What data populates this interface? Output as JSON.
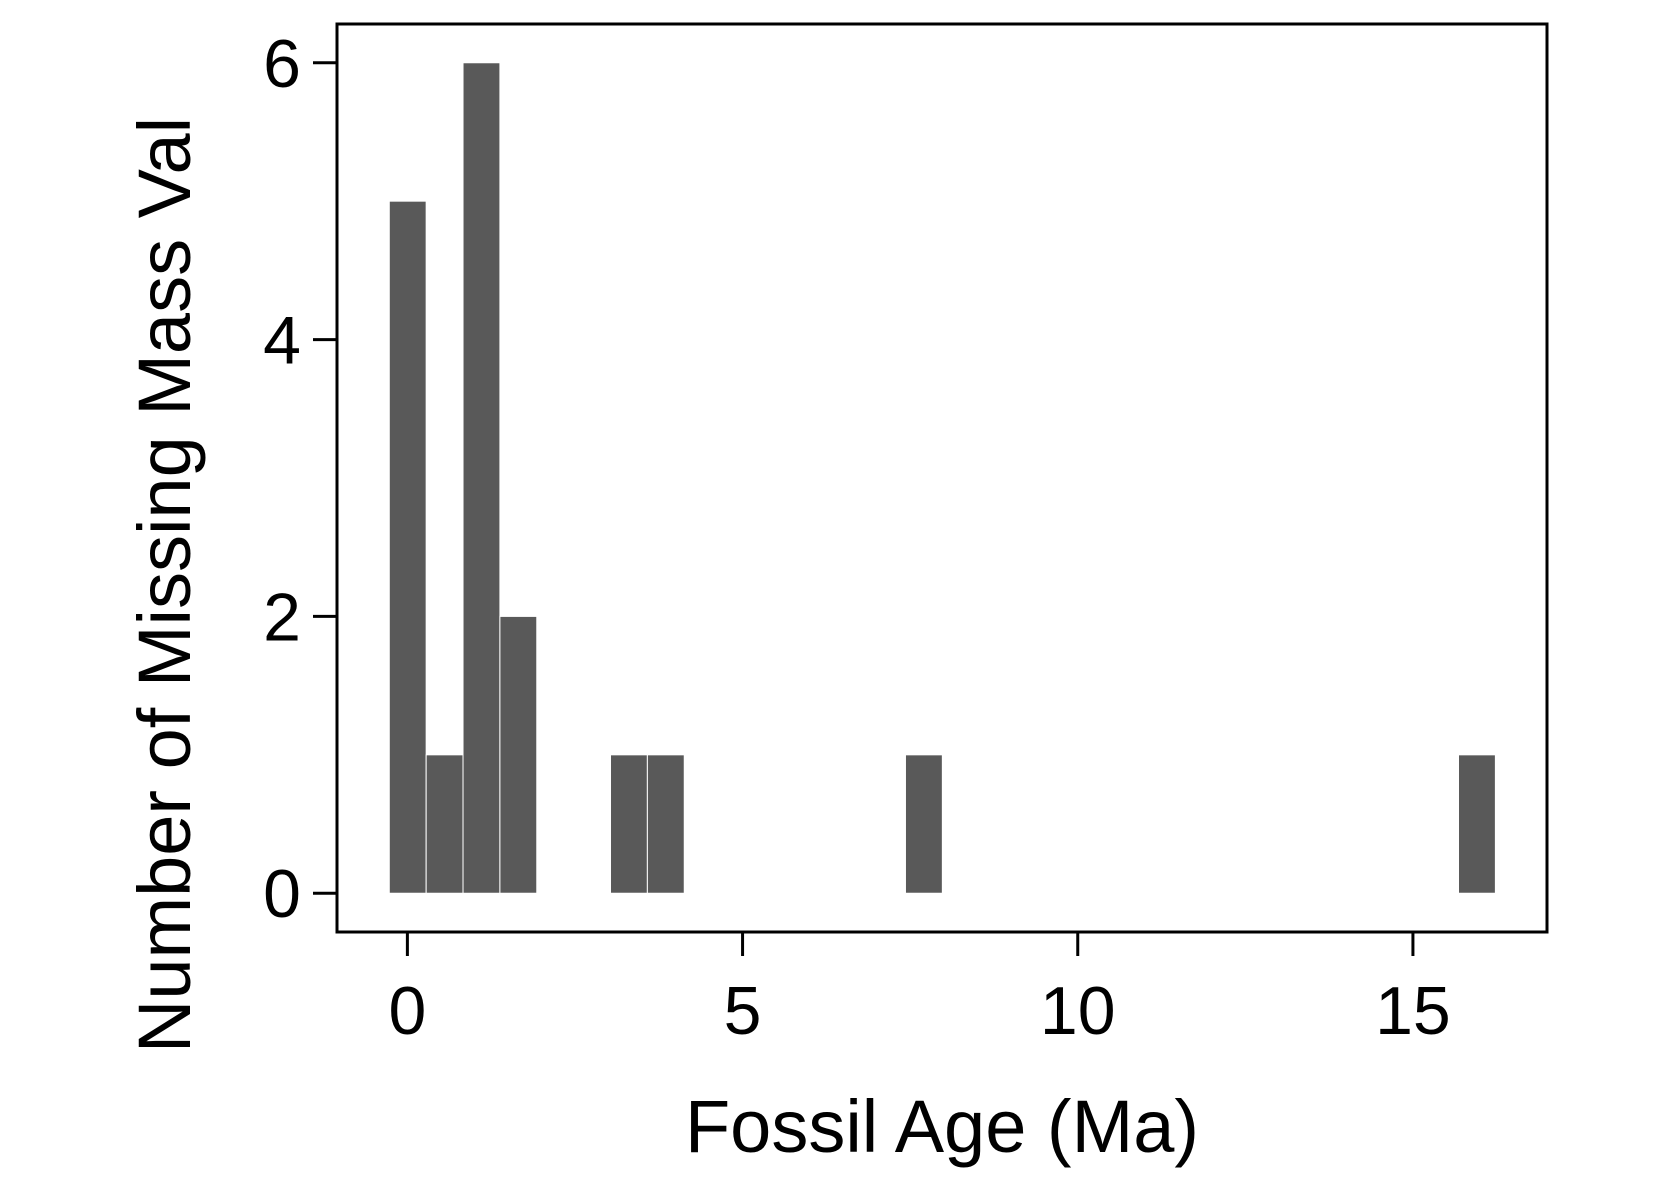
{
  "chart_data": {
    "type": "bar",
    "title": "",
    "xlabel": "Fossil Age (Ma)",
    "ylabel": "Number of Missing Mass Val",
    "xlim": [
      -1.05,
      17
    ],
    "ylim": [
      -0.28,
      6.28
    ],
    "xticks": [
      0,
      5,
      10,
      15
    ],
    "yticks": [
      0,
      2,
      4,
      6
    ],
    "bin_width": 0.55,
    "bars": [
      {
        "x0": -0.27,
        "x1": 0.28,
        "value": 5
      },
      {
        "x0": 0.28,
        "x1": 0.83,
        "value": 1
      },
      {
        "x0": 0.83,
        "x1": 1.38,
        "value": 6
      },
      {
        "x0": 1.38,
        "x1": 1.93,
        "value": 2
      },
      {
        "x0": 3.03,
        "x1": 3.58,
        "value": 1
      },
      {
        "x0": 3.58,
        "x1": 4.13,
        "value": 1
      },
      {
        "x0": 7.43,
        "x1": 7.98,
        "value": 1
      },
      {
        "x0": 15.68,
        "x1": 16.23,
        "value": 1
      }
    ],
    "bar_color": "#595959",
    "grid": false,
    "legend": "none"
  }
}
